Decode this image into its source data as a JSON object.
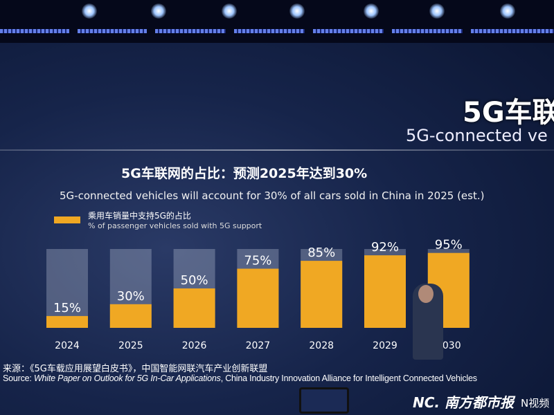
{
  "slide": {
    "big_title": "5G车联",
    "big_subtitle": "5G-connected ve",
    "source_cn": "来源：《5G车载应用展望白皮书》，中国智能网联汽车产业创新联盟",
    "source_label": "Source: ",
    "source_italic": "White Paper on Outlook for 5G In-Car Applications",
    "source_rest": ", China Industry Innovation Alliance for Intelligent Connected Vehicles",
    "watermark": "NC. 南方都市报",
    "watermark2": "N视频"
  },
  "chart_data": {
    "type": "bar",
    "title": "5G车联网的占比：预测2025年达到30%",
    "subtitle": "5G-connected vehicles will account for 30% of all cars sold in China in 2025 (est.)",
    "legend": {
      "name_cn": "乘用车销量中支持5G的占比",
      "name_en": "% of passenger vehicles sold with 5G support",
      "color": "#f0a823"
    },
    "categories": [
      "2024",
      "2025",
      "2026",
      "2027",
      "2028",
      "2029",
      "2030"
    ],
    "values": [
      15,
      30,
      50,
      75,
      85,
      92,
      95
    ],
    "labels": [
      "15%",
      "30%",
      "50%",
      "75%",
      "85%",
      "92%",
      "95%"
    ],
    "ylim": [
      0,
      100
    ],
    "grid": false
  }
}
